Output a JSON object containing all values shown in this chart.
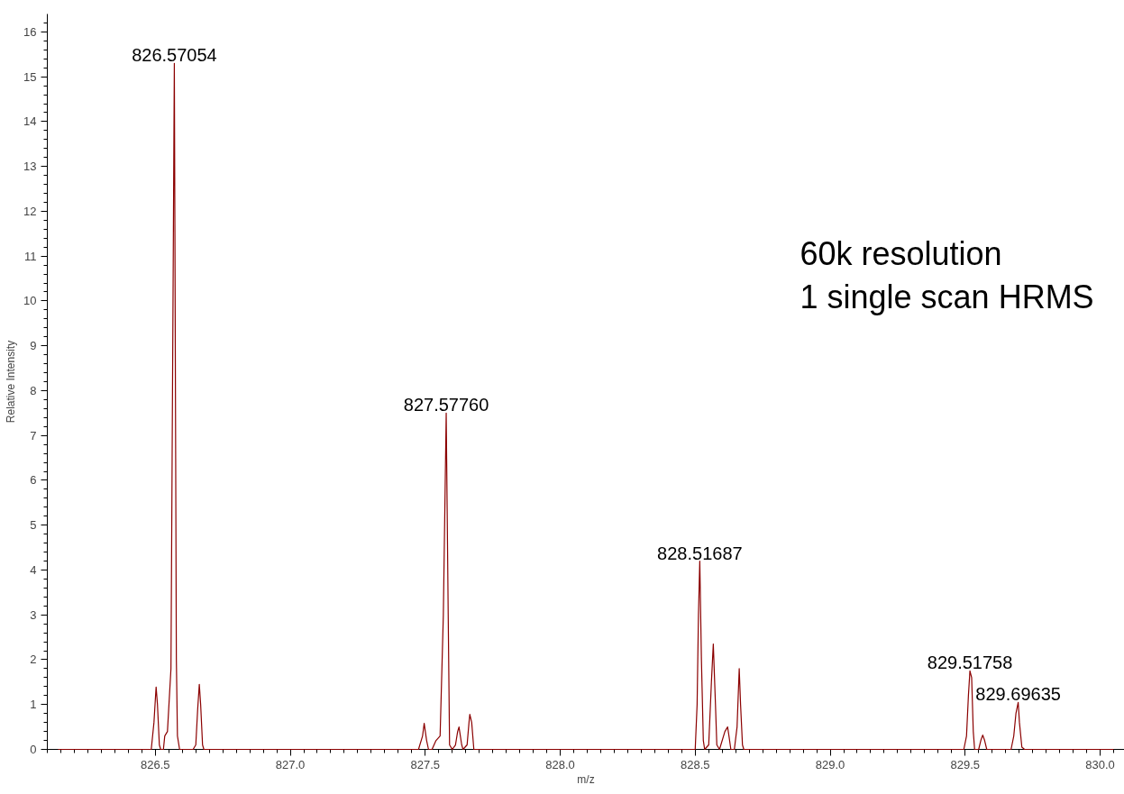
{
  "chart_data": {
    "type": "line",
    "xlabel": "m/z",
    "ylabel": "Relative Intensity",
    "xlim": [
      826.1,
      830.09
    ],
    "ylim": [
      0,
      16.4
    ],
    "xticks": [
      {
        "value": 826.5,
        "label": "826.5"
      },
      {
        "value": 827,
        "label": "827.0"
      },
      {
        "value": 827.5,
        "label": "827.5"
      },
      {
        "value": 828,
        "label": "828.0"
      },
      {
        "value": 828.5,
        "label": "828.5"
      },
      {
        "value": 829,
        "label": "829.0"
      },
      {
        "value": 829.5,
        "label": "829.5"
      },
      {
        "value": 830,
        "label": "830.0"
      }
    ],
    "yticks": [
      0,
      1,
      2,
      3,
      4,
      5,
      6,
      7,
      8,
      9,
      10,
      11,
      12,
      13,
      14,
      15,
      16
    ],
    "grid": false,
    "marker": "none",
    "line_style": "solid",
    "series": [
      {
        "color": "#8b0000",
        "x": [
          826.14,
          826.485,
          826.495,
          826.5,
          826.503,
          826.508,
          826.515,
          826.52,
          826.53,
          826.535,
          826.545,
          826.558,
          826.5705,
          826.578,
          826.582,
          826.59,
          826.64,
          826.65,
          826.657,
          826.663,
          826.668,
          826.675,
          826.68,
          827.475,
          827.49,
          827.496,
          827.505,
          827.512,
          827.525,
          827.54,
          827.555,
          827.567,
          827.5776,
          827.585,
          827.59,
          827.6,
          827.612,
          827.62,
          827.625,
          827.63,
          827.635,
          827.64,
          827.655,
          827.662,
          827.665,
          827.672,
          827.68,
          828.5,
          828.507,
          828.512,
          828.5169,
          828.523,
          828.53,
          828.535,
          828.55,
          828.56,
          828.567,
          828.575,
          828.58,
          828.59,
          828.61,
          828.62,
          828.625,
          828.632,
          828.645,
          828.655,
          828.663,
          828.668,
          828.675,
          828.68,
          829.495,
          829.505,
          829.512,
          829.5176,
          829.524,
          829.53,
          829.535,
          829.55,
          829.558,
          829.565,
          829.572,
          829.58,
          829.67,
          829.68,
          829.688,
          829.6964,
          829.701,
          829.71,
          829.72,
          830.05
        ],
        "values": [
          0,
          0,
          0.6,
          1.1,
          1.39,
          1.0,
          0.1,
          0,
          0,
          0.3,
          0.4,
          1.8,
          15.3,
          2.0,
          0.3,
          0,
          0,
          0.1,
          0.9,
          1.45,
          1.0,
          0.1,
          0,
          0,
          0.3,
          0.58,
          0.2,
          0,
          0,
          0.2,
          0.3,
          3.0,
          7.5,
          3.0,
          0.1,
          0,
          0.1,
          0.4,
          0.5,
          0.3,
          0.1,
          0,
          0.1,
          0.6,
          0.78,
          0.6,
          0,
          0,
          1.0,
          3.0,
          4.2,
          2.0,
          0.2,
          0,
          0.1,
          1.5,
          2.35,
          1.0,
          0.1,
          0,
          0.4,
          0.5,
          0.3,
          0,
          0,
          0.5,
          1.8,
          1.0,
          0.1,
          0,
          0,
          0.3,
          1.2,
          1.75,
          1.6,
          0.4,
          0,
          0,
          0.2,
          0.32,
          0.2,
          0,
          0,
          0.3,
          0.8,
          1.05,
          0.6,
          0.05,
          0,
          0
        ]
      }
    ],
    "annotations": [
      {
        "text": "826.57054",
        "x": 826.5705,
        "y": 15.3
      },
      {
        "text": "827.57760",
        "x": 827.5776,
        "y": 7.5
      },
      {
        "text": "828.51687",
        "x": 828.5169,
        "y": 4.2
      },
      {
        "text": "829.51758",
        "x": 829.5176,
        "y": 1.75
      },
      {
        "text": "829.69635",
        "x": 829.6964,
        "y": 1.05
      },
      "60k resolution",
      "1 single scan HRMS"
    ]
  }
}
